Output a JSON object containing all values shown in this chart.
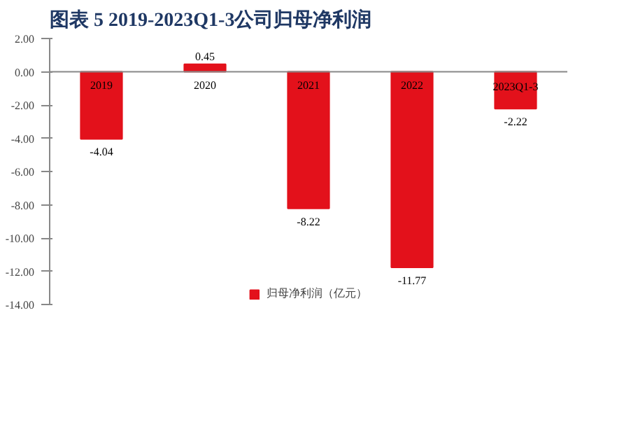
{
  "chart_data": {
    "type": "bar",
    "title": "图表 5   2019-2023Q1-3公司归母净利润",
    "categories": [
      "2019",
      "2020",
      "2021",
      "2022",
      "2023Q1-3"
    ],
    "series": [
      {
        "name": "归母净利润（亿元）",
        "color": "#e3111b",
        "values": [
          -4.04,
          0.45,
          -8.22,
          -11.77,
          -2.22
        ]
      }
    ],
    "ylim": [
      -14,
      2
    ],
    "yticks": [
      {
        "value": 2,
        "label": "2.00"
      },
      {
        "value": 0,
        "label": "0.00"
      },
      {
        "value": -2,
        "label": "-2.00"
      },
      {
        "value": -4,
        "label": "-4.00"
      },
      {
        "value": -6,
        "label": "-6.00"
      },
      {
        "value": -8,
        "label": "-8.00"
      },
      {
        "value": -10,
        "label": "-10.00"
      },
      {
        "value": -12,
        "label": "-12.00"
      },
      {
        "value": -14,
        "label": "-14.00"
      }
    ],
    "data_labels": true,
    "grid": false,
    "legend": "bottom"
  }
}
